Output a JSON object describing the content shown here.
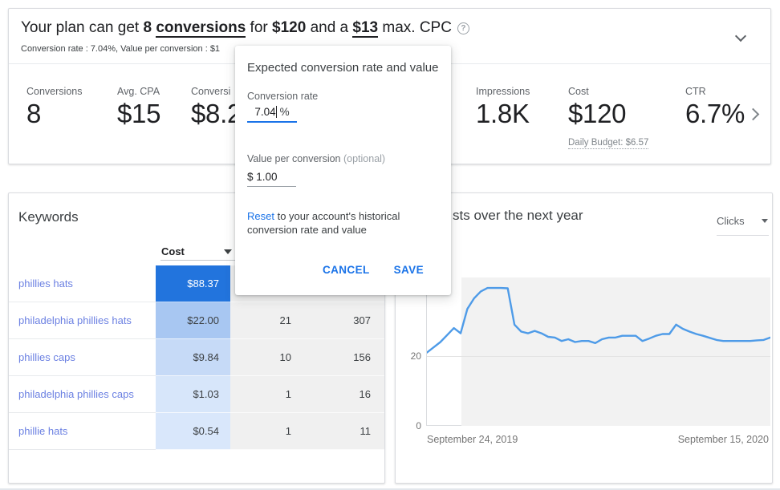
{
  "banner": {
    "headline_segments": [
      {
        "text": "Your plan can get ",
        "bold": false,
        "underline": false
      },
      {
        "text": "8 ",
        "bold": true,
        "underline": false
      },
      {
        "text": "conversions",
        "bold": true,
        "underline": true
      },
      {
        "text": " for ",
        "bold": false,
        "underline": false
      },
      {
        "text": "$120",
        "bold": true,
        "underline": false
      },
      {
        "text": " and a ",
        "bold": false,
        "underline": false
      },
      {
        "text": "$13",
        "bold": true,
        "underline": true
      },
      {
        "text": " max. CPC",
        "bold": false,
        "underline": false
      }
    ],
    "help_icon": "?",
    "subtitle": "Conversion rate : 7.04%, Value per conversion : $1"
  },
  "stats": [
    {
      "label": "Conversions",
      "value": "8"
    },
    {
      "label": "Avg. CPA",
      "value": "$15"
    },
    {
      "label": "Conversi",
      "value": "$8.2"
    },
    {
      "label": "Impressions",
      "value": "1.8K"
    },
    {
      "label": "Cost",
      "value": "$120",
      "sub": "Daily Budget: $6.57"
    },
    {
      "label": "CTR",
      "value": "6.7%"
    }
  ],
  "dialog": {
    "title": "Expected conversion rate and value",
    "conversion_rate_label": "Conversion rate",
    "conversion_rate_value": "7.04",
    "conversion_rate_suffix": "%",
    "value_per_conversion_label": "Value per conversion ",
    "value_per_conversion_optional": "(optional)",
    "value_per_conversion_value": "$ 1.00",
    "reset_link_label": "Reset",
    "reset_text": " to your account's historical conversion rate and value",
    "cancel_label": "CANCEL",
    "save_label": "SAVE"
  },
  "keywords": {
    "title": "Keywords",
    "cost_header": "Cost",
    "rows": [
      {
        "keyword": "phillies hats",
        "cost": "$88.37",
        "col3": "",
        "col4": "",
        "cost_bg": "#2274dd",
        "cost_text": "#ffffff"
      },
      {
        "keyword": "philadelphia phillies hats",
        "cost": "$22.00",
        "col3": "21",
        "col4": "307",
        "cost_bg": "#a8c7f2",
        "cost_text": "#3c4043"
      },
      {
        "keyword": "phillies caps",
        "cost": "$9.84",
        "col3": "10",
        "col4": "156",
        "cost_bg": "#c6daf7",
        "cost_text": "#3c4043"
      },
      {
        "keyword": "philadelphia phillies caps",
        "cost": "$1.03",
        "col3": "1",
        "col4": "16",
        "cost_bg": "#d7e6fa",
        "cost_text": "#3c4043"
      },
      {
        "keyword": "phillie hats",
        "cost": "$0.54",
        "col3": "1",
        "col4": "11",
        "cost_bg": "#d9e7fb",
        "cost_text": "#3c4043"
      }
    ]
  },
  "chart": {
    "title_visible": "sts over the next year",
    "metric_dropdown": "Clicks"
  },
  "chart_data": {
    "type": "line",
    "title": "sts over the next year",
    "selected_metric": "Clicks",
    "x_axis_labels": [
      "September 24, 2019",
      "September 15, 2020"
    ],
    "y_ticks": [
      0,
      20
    ],
    "ylim": [
      0,
      42.5
    ],
    "grid": true,
    "line_color": "#4e9be8",
    "forecast_region_start_frac": 0.1,
    "values": [
      21,
      22.5,
      24,
      26,
      28,
      26.5,
      33.5,
      36.5,
      38.5,
      39.5,
      39.5,
      39.5,
      39.4,
      29,
      27,
      26.5,
      27.2,
      26.5,
      25.5,
      25.3,
      24.3,
      24.8,
      24,
      24.3,
      24.3,
      23.7,
      24.8,
      25.3,
      25.3,
      25.8,
      25.8,
      25.8,
      24.3,
      25,
      25.8,
      26.3,
      26.3,
      29,
      27.8,
      27,
      26.3,
      25.8,
      25.2,
      24.6,
      24.3,
      24.3,
      24.3,
      24.3,
      24.3,
      24.5,
      24.6,
      25.3
    ]
  },
  "colors": {
    "link_blue": "#1a73e8",
    "keyword_link": "#6b80e2",
    "heatmap_strong": "#2274dd",
    "table_gray_cell": "#f0f0f0",
    "chart_line": "#4e9be8"
  }
}
